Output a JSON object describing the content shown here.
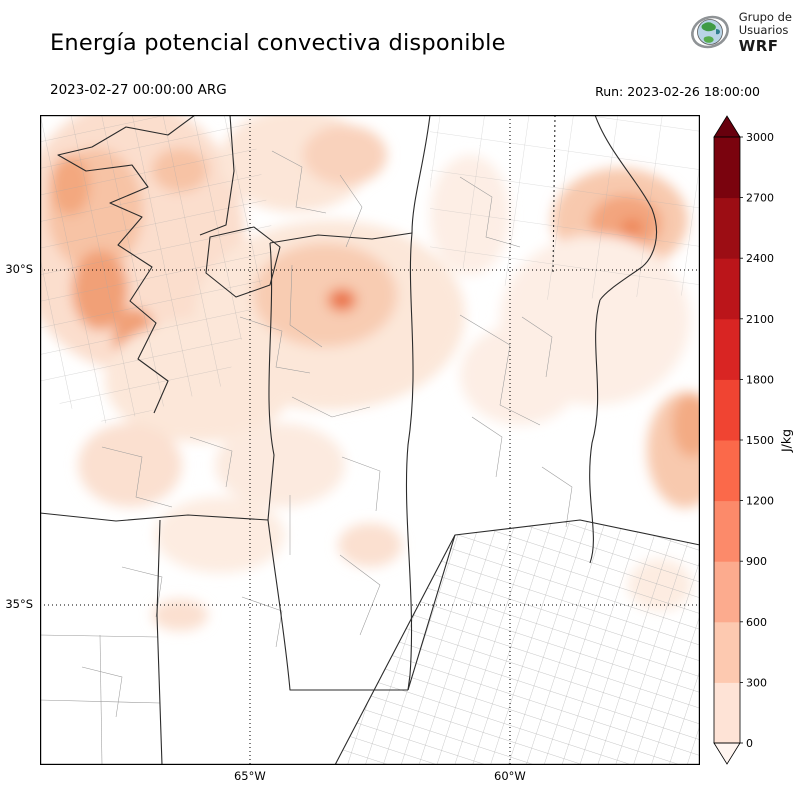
{
  "header": {
    "title": "Energía potencial convectiva disponible",
    "logo": {
      "line1": "Grupo de",
      "line2": "Usuarios",
      "line3": "WRF"
    }
  },
  "subheader": {
    "valid_time": "2023-02-27 00:00:00 ARG",
    "run_label": "Run: 2023-02-26 18:00:00"
  },
  "map": {
    "y_ticks": [
      {
        "label": "30°S",
        "y_pct": 23.85
      },
      {
        "label": "35°S",
        "y_pct": 75.38
      }
    ],
    "x_ticks": [
      {
        "label": "65°W",
        "x_pct": 31.8
      },
      {
        "label": "60°W",
        "x_pct": 71.2
      }
    ]
  },
  "colorbar": {
    "unit": "J/kg",
    "ticks": [
      0,
      300,
      600,
      900,
      1200,
      1500,
      1800,
      2100,
      2400,
      2700,
      3000
    ],
    "segment_colors": [
      "#fee3d6",
      "#fdc9b0",
      "#fcab8e",
      "#fc8a6a",
      "#fb694a",
      "#f04432",
      "#d92523",
      "#bb151a",
      "#9c0d14",
      "#7a030e"
    ],
    "under_color": "#fff5f0",
    "over_color": "#67000d"
  }
}
